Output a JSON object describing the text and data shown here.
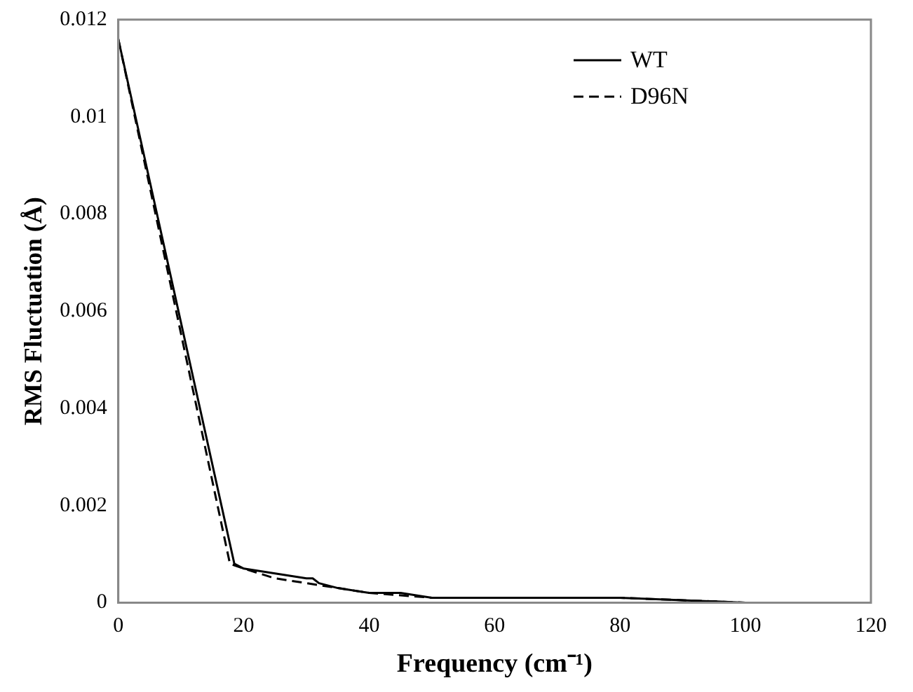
{
  "chart_data": {
    "type": "line",
    "xlabel": "Frequency (cm⁻¹)",
    "ylabel": "RMS Fluctuation (Å)",
    "xlim": [
      0,
      120
    ],
    "xticks": [
      0,
      20,
      40,
      60,
      80,
      100,
      120
    ],
    "ylim": [
      0,
      0.012
    ],
    "yticks": [
      0,
      0.002,
      0.004,
      0.006,
      0.008,
      0.01,
      0.012
    ],
    "grid": false,
    "legend": "top right",
    "marker": "none",
    "series": [
      {
        "name": "WT",
        "color": "#000000",
        "line_style": "solid",
        "x": [
          0,
          18.5,
          20,
          25,
          30,
          31,
          32,
          35,
          40,
          45,
          50,
          60,
          70,
          80,
          100,
          118
        ],
        "values": [
          0.0116,
          0.0008,
          0.0007,
          0.0006,
          0.0005,
          0.0005,
          0.0004,
          0.0003,
          0.0002,
          0.0002,
          0.0001,
          0.0001,
          0.0001,
          0.0001,
          0,
          0
        ]
      },
      {
        "name": "D96N",
        "color": "#000000",
        "line_style": "dashed",
        "x": [
          0,
          17.8,
          20,
          25,
          30,
          35,
          40,
          50,
          60,
          80,
          100,
          118
        ],
        "values": [
          0.0116,
          0.0008,
          0.0007,
          0.0005,
          0.0004,
          0.0003,
          0.0002,
          0.0001,
          0.0001,
          0.0001,
          0,
          0
        ]
      }
    ]
  }
}
